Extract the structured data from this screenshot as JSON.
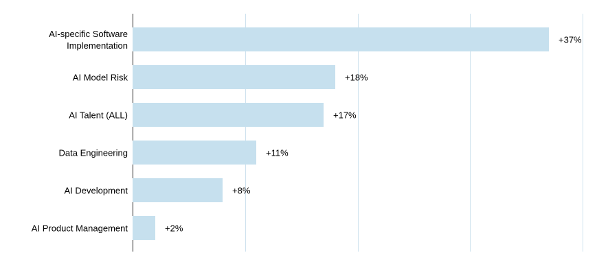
{
  "chart_data": {
    "type": "bar",
    "orientation": "horizontal",
    "title": "",
    "xlabel": "",
    "ylabel": "",
    "categories": [
      "AI-specific Software Implementation",
      "AI Model Risk",
      "AI Talent (ALL)",
      "Data Engineering",
      "AI Development",
      "AI Product Management"
    ],
    "values": [
      37,
      18,
      17,
      11,
      8,
      2
    ],
    "value_labels": [
      "+37%",
      "+18%",
      "+17%",
      "+11%",
      "+8%",
      "+2%"
    ],
    "xlim": [
      0,
      41
    ],
    "grid_ticks": [
      10,
      20,
      30,
      40
    ],
    "grid": true,
    "legend": false,
    "tick_labels_shown": false,
    "colors": {
      "bar_fill": "#c6e0ee",
      "gridline": "#cfe2ee",
      "axis_line": "#212121",
      "label_text": "#000000",
      "background": "#ffffff"
    }
  }
}
